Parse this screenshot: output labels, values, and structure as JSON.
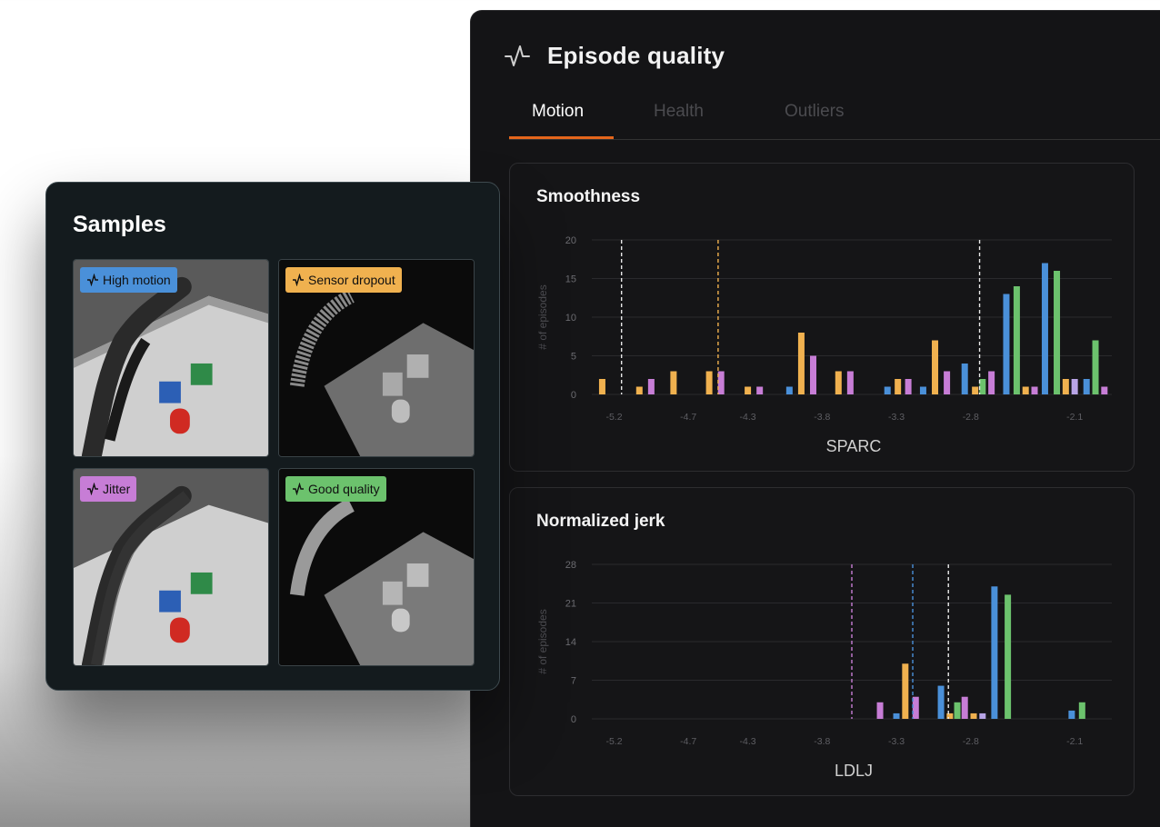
{
  "panel": {
    "title": "Episode quality",
    "icon": "activity-icon",
    "tabs": [
      "Motion",
      "Health",
      "Outliers"
    ],
    "active_tab": "Motion",
    "accent": "#e4661c"
  },
  "charts": {
    "smoothness": {
      "title": "Smoothness",
      "ylabel": "# of episodes",
      "xlabel": "SPARC"
    },
    "jerk": {
      "title": "Normalized jerk",
      "ylabel": "# of episodes",
      "xlabel": "LDLJ"
    }
  },
  "colors": {
    "blue": "#4a90d9",
    "orange": "#f0b14f",
    "green": "#6cc26d",
    "purple": "#c77dd6",
    "lavender": "#b8a4e6",
    "white": "#e8e8e8"
  },
  "chart_data": [
    {
      "type": "bar",
      "title": "Smoothness",
      "xlabel": "SPARC",
      "ylabel": "# of episodes",
      "ylim": [
        0,
        20
      ],
      "yticks": [
        0,
        5,
        10,
        15,
        20
      ],
      "xlim": [
        -5.35,
        -1.85
      ],
      "xticks": [
        -5.2,
        -4.7,
        -4.3,
        -3.8,
        -3.3,
        -2.8,
        -2.1
      ],
      "xtick_labels": [
        "-5.2",
        "-4.7",
        "-4.3",
        "-3.8",
        "-3.3",
        "-2.8",
        "-2.1"
      ],
      "grid": true,
      "bars": [
        {
          "x": -5.28,
          "value": 2,
          "color": "orange"
        },
        {
          "x": -5.03,
          "value": 1,
          "color": "orange"
        },
        {
          "x": -4.95,
          "value": 2,
          "color": "purple"
        },
        {
          "x": -4.8,
          "value": 3,
          "color": "orange"
        },
        {
          "x": -4.56,
          "value": 3,
          "color": "orange"
        },
        {
          "x": -4.48,
          "value": 3,
          "color": "purple"
        },
        {
          "x": -4.3,
          "value": 1,
          "color": "orange"
        },
        {
          "x": -4.22,
          "value": 1,
          "color": "purple"
        },
        {
          "x": -4.02,
          "value": 1,
          "color": "blue"
        },
        {
          "x": -3.94,
          "value": 8,
          "color": "orange"
        },
        {
          "x": -3.86,
          "value": 5,
          "color": "purple"
        },
        {
          "x": -3.69,
          "value": 3,
          "color": "orange"
        },
        {
          "x": -3.61,
          "value": 3,
          "color": "purple"
        },
        {
          "x": -3.36,
          "value": 1,
          "color": "blue"
        },
        {
          "x": -3.29,
          "value": 2,
          "color": "orange"
        },
        {
          "x": -3.22,
          "value": 2,
          "color": "purple"
        },
        {
          "x": -3.12,
          "value": 1,
          "color": "blue"
        },
        {
          "x": -3.04,
          "value": 7,
          "color": "orange"
        },
        {
          "x": -2.96,
          "value": 3,
          "color": "purple"
        },
        {
          "x": -2.84,
          "value": 4,
          "color": "blue"
        },
        {
          "x": -2.77,
          "value": 1,
          "color": "orange"
        },
        {
          "x": -2.72,
          "value": 2,
          "color": "green"
        },
        {
          "x": -2.66,
          "value": 3,
          "color": "purple"
        },
        {
          "x": -2.56,
          "value": 13,
          "color": "blue"
        },
        {
          "x": -2.49,
          "value": 14,
          "color": "green"
        },
        {
          "x": -2.43,
          "value": 1,
          "color": "orange"
        },
        {
          "x": -2.37,
          "value": 1,
          "color": "purple"
        },
        {
          "x": -2.3,
          "value": 17,
          "color": "blue"
        },
        {
          "x": -2.22,
          "value": 16,
          "color": "green"
        },
        {
          "x": -2.16,
          "value": 2,
          "color": "orange"
        },
        {
          "x": -2.1,
          "value": 2,
          "color": "lavender"
        },
        {
          "x": -2.02,
          "value": 2,
          "color": "blue"
        },
        {
          "x": -1.96,
          "value": 7,
          "color": "green"
        },
        {
          "x": -1.9,
          "value": 1,
          "color": "purple"
        }
      ],
      "reference_lines": [
        {
          "x": -5.15,
          "color": "white"
        },
        {
          "x": -4.5,
          "color": "orange"
        },
        {
          "x": -2.74,
          "color": "white"
        }
      ]
    },
    {
      "type": "bar",
      "title": "Normalized jerk",
      "xlabel": "LDLJ",
      "ylabel": "# of episodes",
      "ylim": [
        0,
        28
      ],
      "yticks": [
        0,
        7,
        14,
        21,
        28
      ],
      "xlim": [
        -5.35,
        -1.85
      ],
      "xticks": [
        -5.2,
        -4.7,
        -4.3,
        -3.8,
        -3.3,
        -2.8,
        -2.1
      ],
      "xtick_labels": [
        "-5.2",
        "-4.7",
        "-4.3",
        "-3.8",
        "-3.3",
        "-2.8",
        "-2.1"
      ],
      "grid": true,
      "bars": [
        {
          "x": -3.41,
          "value": 3,
          "color": "purple"
        },
        {
          "x": -3.3,
          "value": 1,
          "color": "blue"
        },
        {
          "x": -3.24,
          "value": 10,
          "color": "orange"
        },
        {
          "x": -3.17,
          "value": 4,
          "color": "purple"
        },
        {
          "x": -3.0,
          "value": 6,
          "color": "blue"
        },
        {
          "x": -2.94,
          "value": 1,
          "color": "orange"
        },
        {
          "x": -2.89,
          "value": 3,
          "color": "green"
        },
        {
          "x": -2.84,
          "value": 4,
          "color": "purple"
        },
        {
          "x": -2.78,
          "value": 1,
          "color": "orange"
        },
        {
          "x": -2.72,
          "value": 1,
          "color": "lavender"
        },
        {
          "x": -2.64,
          "value": 24,
          "color": "blue"
        },
        {
          "x": -2.55,
          "value": 22.5,
          "color": "green"
        },
        {
          "x": -2.12,
          "value": 1.5,
          "color": "blue"
        },
        {
          "x": -2.05,
          "value": 3,
          "color": "green"
        }
      ],
      "reference_lines": [
        {
          "x": -3.6,
          "color": "purple"
        },
        {
          "x": -3.19,
          "color": "blue"
        },
        {
          "x": -2.95,
          "color": "white"
        }
      ]
    }
  ],
  "samples": {
    "title": "Samples",
    "tiles": [
      {
        "label": "High motion",
        "color": "#4a90d9",
        "view": "rgb"
      },
      {
        "label": "Sensor dropout",
        "color": "#f0b14f",
        "view": "depth"
      },
      {
        "label": "Jitter",
        "color": "#c77dd6",
        "view": "rgb"
      },
      {
        "label": "Good quality",
        "color": "#6cc26d",
        "view": "depth"
      }
    ]
  }
}
